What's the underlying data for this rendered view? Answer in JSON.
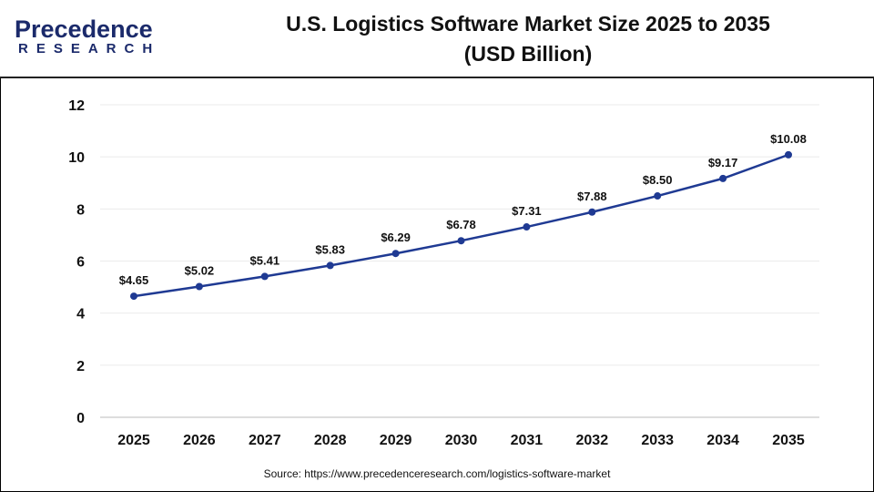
{
  "logo": {
    "line1": "Precedence",
    "line2": "RESEARCH"
  },
  "chart_data": {
    "type": "line",
    "title": "U.S. Logistics Software Market Size 2025 to 2035",
    "subtitle": "(USD Billion)",
    "categories": [
      "2025",
      "2026",
      "2027",
      "2028",
      "2029",
      "2030",
      "2031",
      "2032",
      "2033",
      "2034",
      "2035"
    ],
    "values": [
      4.65,
      5.02,
      5.41,
      5.83,
      6.29,
      6.78,
      7.31,
      7.88,
      8.5,
      9.17,
      10.08
    ],
    "data_labels": [
      "$4.65",
      "$5.02",
      "$5.41",
      "$5.83",
      "$6.29",
      "$6.78",
      "$7.31",
      "$7.88",
      "$8.50",
      "$9.17",
      "$10.08"
    ],
    "yticks": [
      0,
      2,
      4,
      6,
      8,
      10,
      12
    ],
    "ylim": [
      0,
      12
    ],
    "grid": true,
    "line_color": "#1f3a93"
  },
  "source": "Source: https://www.precedenceresearch.com/logistics-software-market"
}
